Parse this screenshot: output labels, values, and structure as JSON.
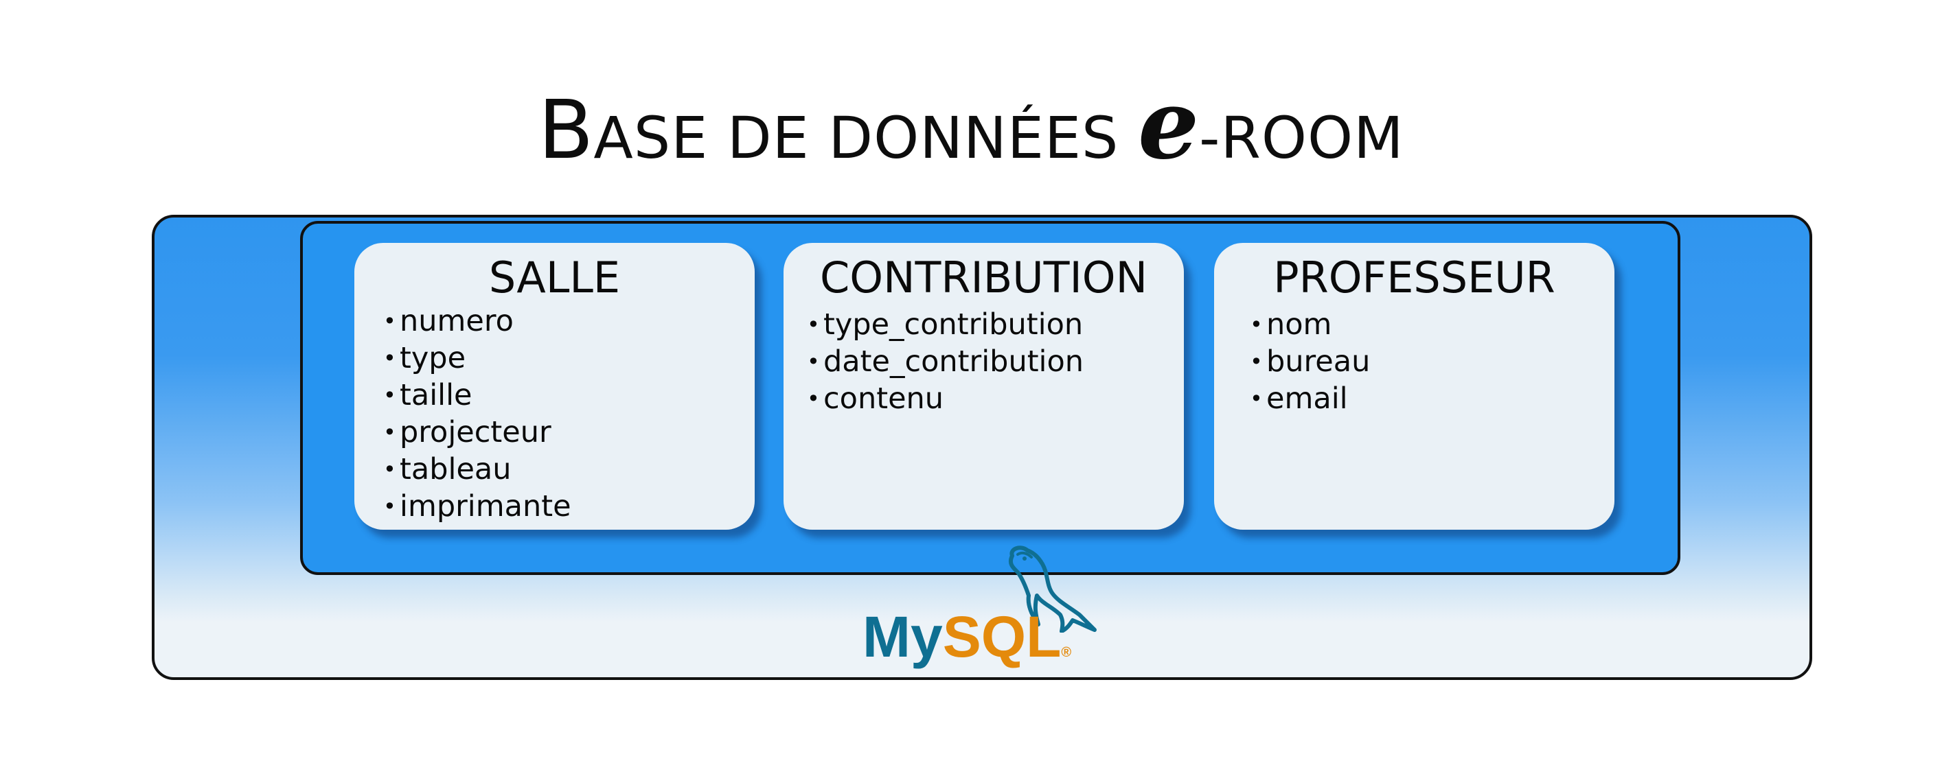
{
  "title": {
    "part1_cap": "B",
    "part1_rest": "ase de données",
    "emphasis": "e",
    "part2": "-room"
  },
  "tables": [
    {
      "name": "SALLE",
      "attributes": [
        "numero",
        "type",
        "taille",
        "projecteur",
        "tableau",
        "imprimante"
      ]
    },
    {
      "name": "CONTRIBUTION",
      "attributes": [
        "type_contribution",
        "date_contribution",
        "contenu"
      ]
    },
    {
      "name": "PROFESSEUR",
      "attributes": [
        "nom",
        "bureau",
        "email"
      ]
    }
  ],
  "logo": {
    "my": "My",
    "sql": "SQL",
    "reg": "®",
    "icon": "dolphin-icon"
  },
  "colors": {
    "outer_gradient_top": "#2f95ef",
    "outer_gradient_bottom": "#edf3f8",
    "inner_box": "#2694f0",
    "card": "#eaf1f6",
    "mysql_blue": "#0f6f92",
    "mysql_orange": "#e48a0c"
  }
}
